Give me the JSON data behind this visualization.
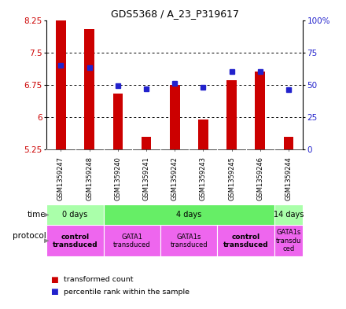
{
  "title": "GDS5368 / A_23_P319617",
  "samples": [
    "GSM1359247",
    "GSM1359248",
    "GSM1359240",
    "GSM1359241",
    "GSM1359242",
    "GSM1359243",
    "GSM1359245",
    "GSM1359246",
    "GSM1359244"
  ],
  "transformed_counts": [
    8.45,
    8.05,
    6.55,
    5.55,
    6.75,
    5.95,
    6.85,
    7.05,
    5.55
  ],
  "percentile_ranks": [
    65,
    63,
    49,
    47,
    51,
    48,
    60,
    60,
    46
  ],
  "ylim": [
    5.25,
    8.25
  ],
  "yticks": [
    5.25,
    6.0,
    6.75,
    7.5,
    8.25
  ],
  "ytick_labels": [
    "5.25",
    "6",
    "6.75",
    "7.5",
    "8.25"
  ],
  "y2lim": [
    0,
    100
  ],
  "y2ticks": [
    0,
    25,
    50,
    75,
    100
  ],
  "y2tick_labels": [
    "0",
    "25",
    "50",
    "75",
    "100%"
  ],
  "bar_color": "#cc0000",
  "dot_color": "#2222cc",
  "bar_bottom": 5.25,
  "time_groups": [
    {
      "label": "0 days",
      "start": 0,
      "end": 2,
      "color": "#aaffaa"
    },
    {
      "label": "4 days",
      "start": 2,
      "end": 8,
      "color": "#66ee66"
    },
    {
      "label": "14 days",
      "start": 8,
      "end": 9,
      "color": "#aaffaa"
    }
  ],
  "protocol_groups": [
    {
      "label": "control\ntransduced",
      "start": 0,
      "end": 2,
      "bold": true
    },
    {
      "label": "GATA1\ntransduced",
      "start": 2,
      "end": 4,
      "bold": false
    },
    {
      "label": "GATA1s\ntransduced",
      "start": 4,
      "end": 6,
      "bold": false
    },
    {
      "label": "control\ntransduced",
      "start": 6,
      "end": 8,
      "bold": true
    },
    {
      "label": "GATA1s\ntransdu\nced",
      "start": 8,
      "end": 9,
      "bold": false
    }
  ],
  "protocol_color": "#ee66ee",
  "legend_items": [
    {
      "color": "#cc0000",
      "label": "transformed count"
    },
    {
      "color": "#2222cc",
      "label": "percentile rank within the sample"
    }
  ],
  "background_color": "white",
  "sample_bg": "#cccccc",
  "grid_dotted_color": "#000000"
}
